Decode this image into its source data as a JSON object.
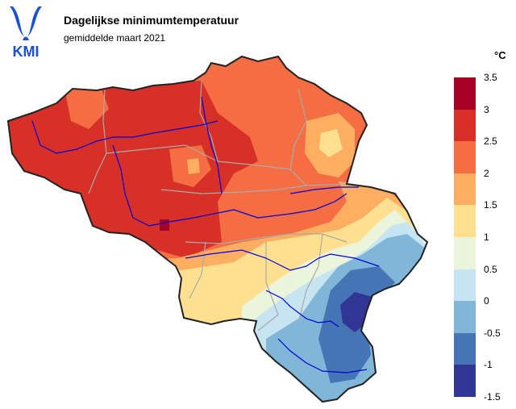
{
  "header": {
    "logo_text": "KMI",
    "title": "Dagelijkse minimumtemperatuur",
    "subtitle": "gemiddelde maart 2021"
  },
  "legend": {
    "unit": "°C",
    "ticks": [
      "3.5",
      "3",
      "2.5",
      "2",
      "1.5",
      "1",
      "0.5",
      "0",
      "-0.5",
      "-1",
      "-1.5"
    ],
    "classes": [
      {
        "min": 3,
        "max": 3.5,
        "color": "#a50026"
      },
      {
        "min": 2.5,
        "max": 3,
        "color": "#d73027"
      },
      {
        "min": 2,
        "max": 2.5,
        "color": "#f46d43"
      },
      {
        "min": 1.5,
        "max": 2,
        "color": "#fdae61"
      },
      {
        "min": 1,
        "max": 1.5,
        "color": "#fee090"
      },
      {
        "min": 0.5,
        "max": 1,
        "color": "#eaf5dc"
      },
      {
        "min": 0,
        "max": 0.5,
        "color": "#c6e4f2"
      },
      {
        "min": -0.5,
        "max": 0,
        "color": "#80b6d8"
      },
      {
        "min": -1,
        "max": -0.5,
        "color": "#4575b4"
      },
      {
        "min": -1.5,
        "max": -1,
        "color": "#313695"
      }
    ]
  },
  "map_colors": {
    "border": "#222222",
    "province_lines": "#aaaaaa",
    "rivers": "#0000dd"
  }
}
